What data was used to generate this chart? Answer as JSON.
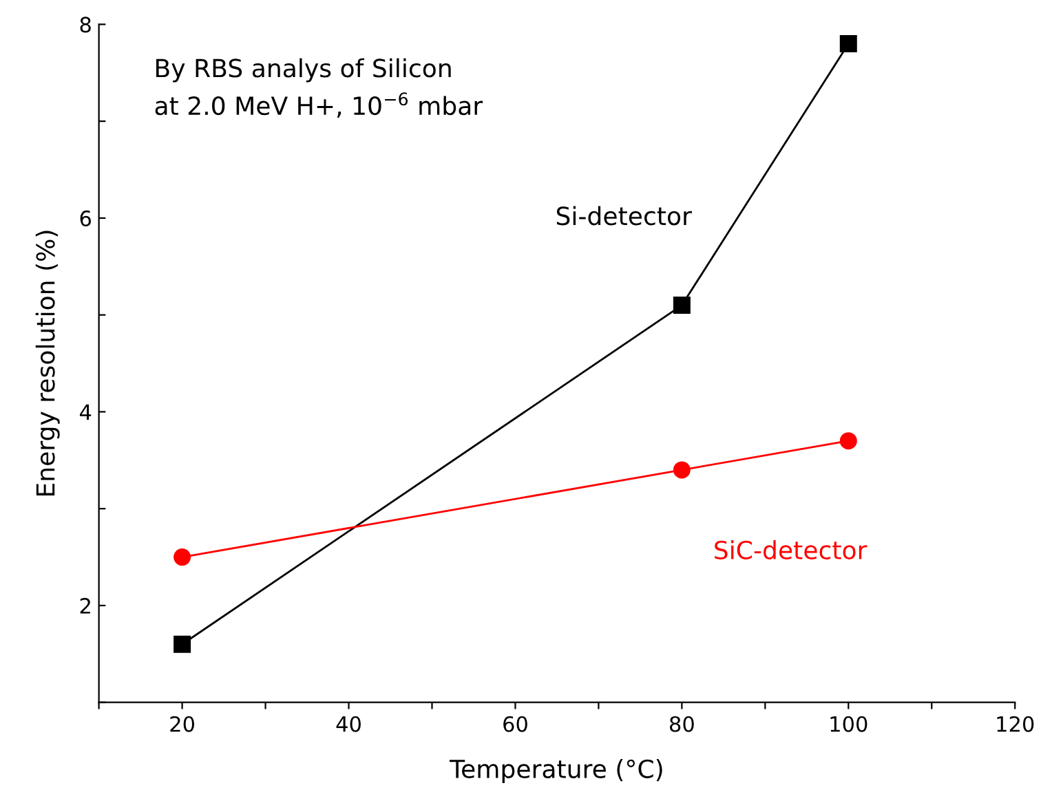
{
  "chart_data": {
    "type": "line",
    "xlabel": "Temperature (°C)",
    "ylabel": "Energy resolution (%)",
    "annotations": [
      "By RBS analys of Silicon\nat 2.0 MeV H+, 10$^{−6}$ mbar"
    ],
    "xlim": [
      10,
      120
    ],
    "xticks": [
      {
        "value": 10,
        "label": null
      },
      20,
      {
        "value": 30,
        "label": null
      },
      40,
      {
        "value": 50,
        "label": null
      },
      60,
      {
        "value": 70,
        "label": null
      },
      80,
      {
        "value": 90,
        "label": null
      },
      100,
      {
        "value": 110,
        "label": null
      },
      120
    ],
    "ylim": [
      1,
      8
    ],
    "yticks": [
      {
        "value": 1,
        "label": null
      },
      2,
      {
        "value": 3,
        "label": null
      },
      4,
      {
        "value": 5,
        "label": null
      },
      6,
      {
        "value": 7,
        "label": null
      },
      8
    ],
    "grid": false,
    "legend": false,
    "x": [
      20,
      80,
      100
    ],
    "series": [
      {
        "name": "Si-detector",
        "color": "#000000",
        "marker": "square",
        "values": [
          1.6,
          5.1,
          7.8
        ]
      },
      {
        "name": "SiC-detector",
        "color": "#ff0000",
        "marker": "circle",
        "values": [
          2.5,
          3.4,
          3.7
        ]
      }
    ]
  }
}
